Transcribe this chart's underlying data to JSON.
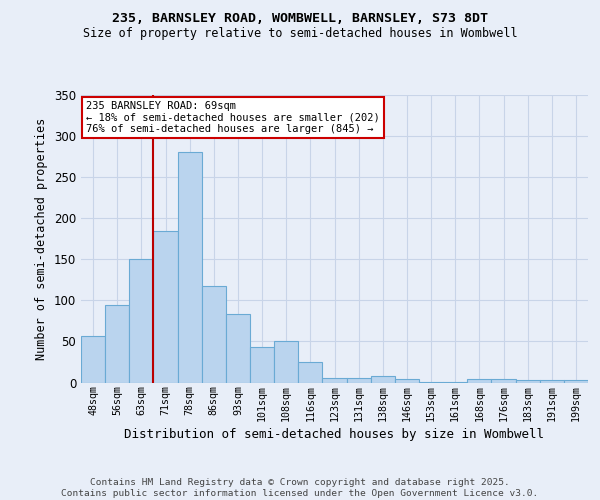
{
  "title1": "235, BARNSLEY ROAD, WOMBWELL, BARNSLEY, S73 8DT",
  "title2": "Size of property relative to semi-detached houses in Wombwell",
  "xlabel": "Distribution of semi-detached houses by size in Wombwell",
  "ylabel": "Number of semi-detached properties",
  "categories": [
    "48sqm",
    "56sqm",
    "63sqm",
    "71sqm",
    "78sqm",
    "86sqm",
    "93sqm",
    "101sqm",
    "108sqm",
    "116sqm",
    "123sqm",
    "131sqm",
    "138sqm",
    "146sqm",
    "153sqm",
    "161sqm",
    "168sqm",
    "176sqm",
    "183sqm",
    "191sqm",
    "199sqm"
  ],
  "values": [
    57,
    94,
    150,
    185,
    281,
    118,
    83,
    43,
    50,
    25,
    6,
    6,
    8,
    4,
    1,
    1,
    4,
    4,
    3,
    3,
    3
  ],
  "bar_color": "#bad4ee",
  "bar_edge_color": "#6aaad4",
  "vline_x_index": 3,
  "vline_color": "#bb0000",
  "annotation_text": "235 BARNSLEY ROAD: 69sqm\n← 18% of semi-detached houses are smaller (202)\n76% of semi-detached houses are larger (845) →",
  "annotation_box_color": "#ffffff",
  "annotation_border_color": "#cc0000",
  "ylim": [
    0,
    350
  ],
  "yticks": [
    0,
    50,
    100,
    150,
    200,
    250,
    300,
    350
  ],
  "footer_text": "Contains HM Land Registry data © Crown copyright and database right 2025.\nContains public sector information licensed under the Open Government Licence v3.0.",
  "bg_color": "#e8eef8",
  "grid_color": "#c8d4e8"
}
